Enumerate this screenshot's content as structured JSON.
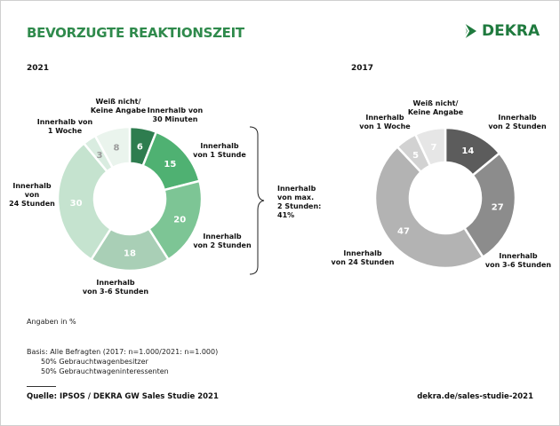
{
  "header": {
    "title": "BEVORZUGTE REAKTIONSZEIT",
    "logo_text": "DEKRA",
    "brand_color": "#1f7a3e"
  },
  "chart_data": [
    {
      "type": "pie",
      "variant": "donut",
      "title": "2021",
      "categories": [
        "Innerhalb von 30 Minuten",
        "Innerhalb von 1 Stunde",
        "Innerhalb von 2 Stunden",
        "Innerhalb von 3-6 Stunden",
        "Innerhalb von 24 Stunden",
        "Innerhalb von 1 Woche",
        "Weiß nicht/ Keine Angabe"
      ],
      "values": [
        6,
        15,
        20,
        18,
        30,
        3,
        8
      ],
      "colors": [
        "#2e7d4f",
        "#4fb172",
        "#7dc595",
        "#a9cfb6",
        "#c5e3cf",
        "#d9ece0",
        "#eaf4ed"
      ],
      "value_label_colors": [
        "#ffffff",
        "#ffffff",
        "#ffffff",
        "#ffffff",
        "#ffffff",
        "#9a9a9a",
        "#9a9a9a"
      ],
      "annotation": {
        "text_lines": [
          "Innerhalb",
          "von max.",
          "2 Stunden:",
          "41%"
        ]
      }
    },
    {
      "type": "pie",
      "variant": "donut",
      "title": "2017",
      "categories": [
        "Innerhalb von 2 Stunden",
        "Innerhalb von 3-6 Stunden",
        "Innerhalb von 24 Stunden",
        "Innerhalb von 1 Woche",
        "Weiß nicht/ Keine Angabe"
      ],
      "values": [
        14,
        27,
        47,
        5,
        7
      ],
      "colors": [
        "#5c5c5c",
        "#8c8c8c",
        "#b3b3b3",
        "#d2d2d2",
        "#e6e6e6"
      ],
      "value_label_colors": [
        "#ffffff",
        "#ffffff",
        "#ffffff",
        "#ffffff",
        "#ffffff"
      ]
    }
  ],
  "labels2021": [
    [
      "Innerhalb von",
      "30 Minuten"
    ],
    [
      "Innerhalb",
      "von 1 Stunde"
    ],
    [
      "Innerhalb",
      "von 2 Stunden"
    ],
    [
      "Innerhalb",
      "von 3-6 Stunden"
    ],
    [
      "Innerhalb",
      "von",
      "24 Stunden"
    ],
    [
      "Innerhalb von",
      "1 Woche"
    ],
    [
      "Weiß nicht/",
      "Keine Angabe"
    ]
  ],
  "labels2017": [
    [
      "Innerhalb",
      "von 2 Stunden"
    ],
    [
      "Innerhalb",
      "von 3-6 Stunden"
    ],
    [
      "Innerhalb",
      "von 24 Stunden"
    ],
    [
      "Innerhalb",
      "von 1 Woche"
    ],
    [
      "Weiß nicht/",
      "Keine Angabe"
    ]
  ],
  "footer": {
    "unit_note": "Angaben in %",
    "basis": "Basis: Alle Befragten (2017: n=1.000/2021: n=1.000)",
    "basis_line2": "50% Gebrauchtwagenbesitzer",
    "basis_line3": "50% Gebrauchtwageninteressenten",
    "source": "Quelle: IPSOS / DEKRA GW Sales Studie 2021",
    "url": "dekra.de/sales-studie-2021"
  }
}
